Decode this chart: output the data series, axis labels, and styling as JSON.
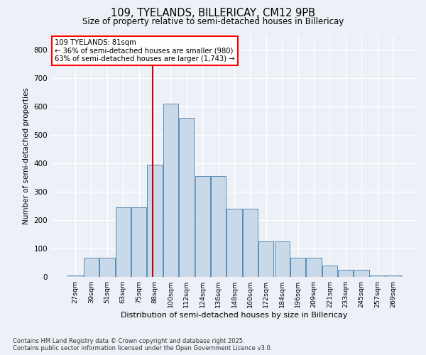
{
  "title1": "109, TYELANDS, BILLERICAY, CM12 9PB",
  "title2": "Size of property relative to semi-detached houses in Billericay",
  "xlabel": "Distribution of semi-detached houses by size in Billericay",
  "ylabel": "Number of semi-detached properties",
  "categories": [
    "27sqm",
    "39sqm",
    "51sqm",
    "63sqm",
    "75sqm",
    "88sqm",
    "100sqm",
    "112sqm",
    "124sqm",
    "136sqm",
    "148sqm",
    "160sqm",
    "172sqm",
    "184sqm",
    "196sqm",
    "209sqm",
    "221sqm",
    "233sqm",
    "245sqm",
    "257sqm",
    "269sqm"
  ],
  "values": [
    5,
    68,
    68,
    245,
    245,
    395,
    610,
    560,
    355,
    355,
    240,
    240,
    125,
    125,
    68,
    68,
    40,
    25,
    25,
    5,
    5
  ],
  "bar_color": "#c9d9ea",
  "bar_edge_color": "#5a8db5",
  "vline_pos": 4.85,
  "vline_color": "#cc0000",
  "annotation_title": "109 TYELANDS: 81sqm",
  "annotation_line1": "← 36% of semi-detached houses are smaller (980)",
  "annotation_line2": "63% of semi-detached houses are larger (1,743) →",
  "ylim": [
    0,
    850
  ],
  "yticks": [
    0,
    100,
    200,
    300,
    400,
    500,
    600,
    700,
    800
  ],
  "footer1": "Contains HM Land Registry data © Crown copyright and database right 2025.",
  "footer2": "Contains public sector information licensed under the Open Government Licence v3.0.",
  "bg_color": "#edf1f7",
  "plot_bg_color": "#edf1f7"
}
